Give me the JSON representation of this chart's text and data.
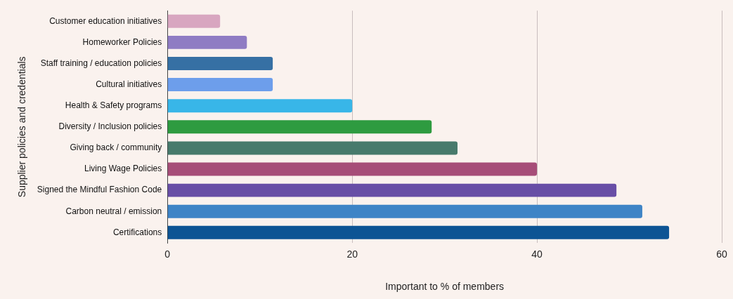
{
  "chart_data": {
    "type": "bar",
    "orientation": "horizontal",
    "xlabel": "Important to % of members",
    "ylabel": "Supplier policies and credentials",
    "categories": [
      "Customer education initiatives",
      "Homeworker Policies",
      "Staff training / education policies",
      "Cultural initiatives",
      "Health & Safety programs",
      "Diversity / Inclusion policies",
      "Giving back / community",
      "Living Wage Policies",
      "Signed the Mindful Fashion Code",
      "Carbon neutral / emission",
      "Certifications"
    ],
    "values": [
      5.7,
      8.6,
      11.4,
      11.4,
      20,
      28.6,
      31.4,
      40,
      48.6,
      51.4,
      54.3
    ],
    "colors": [
      "#d8a6c0",
      "#8f7cc3",
      "#3670a4",
      "#6d9eeb",
      "#38b6e8",
      "#2e9b40",
      "#477a6c",
      "#a64d78",
      "#684ea6",
      "#3e84c6",
      "#0d5494"
    ],
    "xlim": [
      0,
      60
    ],
    "xticks": [
      0,
      20,
      40,
      60
    ],
    "grid": "x",
    "legend": false
  }
}
